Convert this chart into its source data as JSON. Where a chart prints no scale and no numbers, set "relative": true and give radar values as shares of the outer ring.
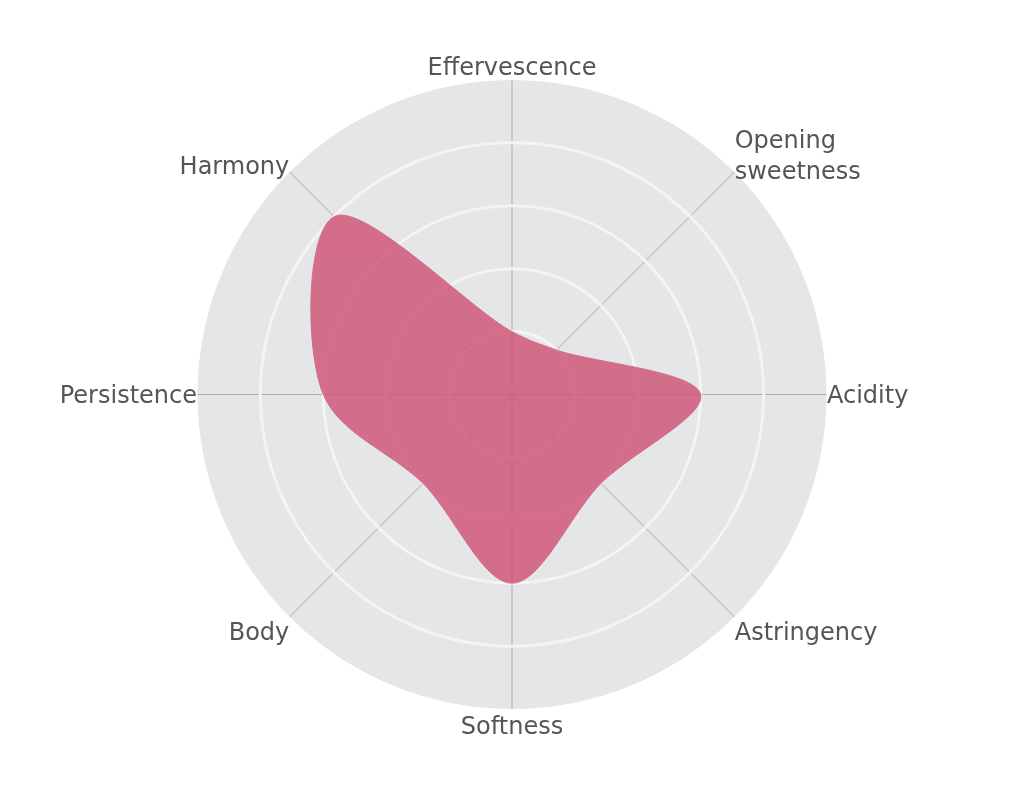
{
  "chart_data": {
    "type": "radar",
    "relative": true,
    "grid": true,
    "categories": [
      "Effervescence",
      "Opening\nsweetness",
      "Acidity",
      "Astringency",
      "Softness",
      "Body",
      "Persistence",
      "Harmony"
    ],
    "series": [
      {
        "color": "#d0587a",
        "values": [
          0.2,
          0.2,
          0.6,
          0.4,
          0.6,
          0.4,
          0.6,
          0.8
        ]
      }
    ]
  }
}
